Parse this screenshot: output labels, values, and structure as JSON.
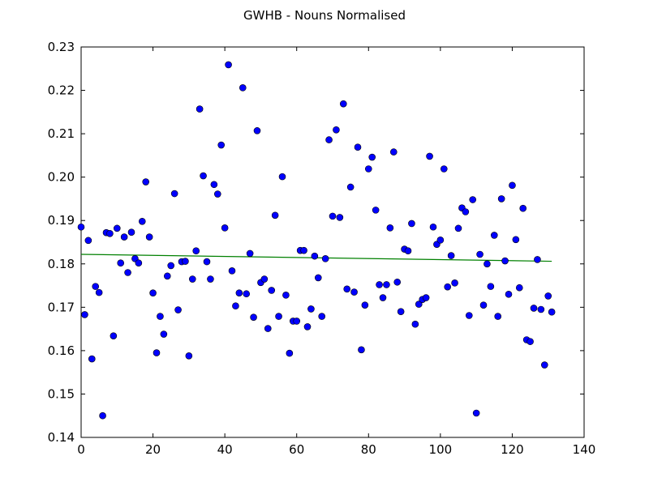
{
  "chart_data": {
    "type": "scatter",
    "title": "GWHB - Nouns Normalised",
    "xlabel": "",
    "ylabel": "",
    "xlim": [
      0,
      140
    ],
    "ylim": [
      0.14,
      0.23
    ],
    "xticks": [
      "0",
      "20",
      "40",
      "60",
      "80",
      "100",
      "120",
      "140"
    ],
    "yticks": [
      "0.14",
      "0.15",
      "0.16",
      "0.17",
      "0.18",
      "0.19",
      "0.20",
      "0.21",
      "0.22",
      "0.23"
    ],
    "grid": false,
    "marker_color": "#0000ff",
    "trend_color": "#008000",
    "series": [
      {
        "kind": "points",
        "x": [
          0,
          1,
          2,
          3,
          4,
          5,
          6,
          7,
          8,
          9,
          10,
          11,
          12,
          13,
          14,
          15,
          16,
          17,
          18,
          19,
          20,
          21,
          22,
          23,
          24,
          25,
          26,
          27,
          28,
          29,
          30,
          31,
          32,
          33,
          34,
          35,
          36,
          37,
          38,
          39,
          40,
          41,
          42,
          43,
          44,
          45,
          46,
          47,
          48,
          49,
          50,
          51,
          52,
          53,
          54,
          55,
          56,
          57,
          58,
          59,
          60,
          61,
          62,
          63,
          64,
          65,
          66,
          67,
          68,
          69,
          70,
          71,
          72,
          73,
          74,
          75,
          76,
          77,
          78,
          79,
          80,
          81,
          82,
          83,
          84,
          85,
          86,
          87,
          88,
          89,
          90,
          91,
          92,
          93,
          94,
          95,
          96,
          97,
          98,
          99,
          100,
          101,
          102,
          103,
          104,
          105,
          106,
          107,
          108,
          109,
          110,
          111,
          112,
          113,
          114,
          115,
          116,
          117,
          118,
          119,
          120,
          121,
          122,
          123,
          124,
          125,
          126,
          127,
          128,
          129,
          130,
          131
        ],
        "y": [
          0.1885,
          0.1683,
          0.1854,
          0.1581,
          0.1748,
          0.1734,
          0.145,
          0.1872,
          0.187,
          0.1634,
          0.1882,
          0.1802,
          0.1862,
          0.178,
          0.1873,
          0.1812,
          0.1802,
          0.1898,
          0.1989,
          0.1862,
          0.1733,
          0.1595,
          0.1679,
          0.1638,
          0.1772,
          0.1796,
          0.1962,
          0.1694,
          0.1805,
          0.1806,
          0.1588,
          0.1765,
          0.183,
          0.2157,
          0.2003,
          0.1805,
          0.1765,
          0.1983,
          0.1961,
          0.2074,
          0.1883,
          0.2259,
          0.1784,
          0.1703,
          0.1733,
          0.2206,
          0.1731,
          0.1824,
          0.1677,
          0.2107,
          0.1757,
          0.1765,
          0.1651,
          0.1739,
          0.1912,
          0.1679,
          0.2001,
          0.1728,
          0.1594,
          0.1668,
          0.1668,
          0.1831,
          0.1831,
          0.1655,
          0.1696,
          0.1818,
          0.1768,
          0.1679,
          0.1812,
          0.2086,
          0.191,
          0.2109,
          0.1907,
          0.2169,
          0.1742,
          0.1977,
          0.1735,
          0.2069,
          0.1602,
          0.1705,
          0.2019,
          0.2046,
          0.1924,
          0.1752,
          0.1722,
          0.1752,
          0.1883,
          0.2058,
          0.1758,
          0.169,
          0.1834,
          0.183,
          0.1893,
          0.1661,
          0.1707,
          0.1718,
          0.1722,
          0.2048,
          0.1885,
          0.1845,
          0.1855,
          0.2019,
          0.1747,
          0.1819,
          0.1756,
          0.1882,
          0.1929,
          0.192,
          0.1681,
          0.1948,
          0.1456,
          0.1822,
          0.1705,
          0.18,
          0.1748,
          0.1866,
          0.1679,
          0.195,
          0.1807,
          0.173,
          0.1981,
          0.1856,
          0.1745,
          0.1928,
          0.1625,
          0.1621,
          0.1698,
          0.181,
          0.1695,
          0.1567,
          0.1726,
          0.1689
        ]
      },
      {
        "kind": "trend-line",
        "x": [
          0,
          131
        ],
        "y": [
          0.1822,
          0.1806
        ]
      }
    ]
  }
}
